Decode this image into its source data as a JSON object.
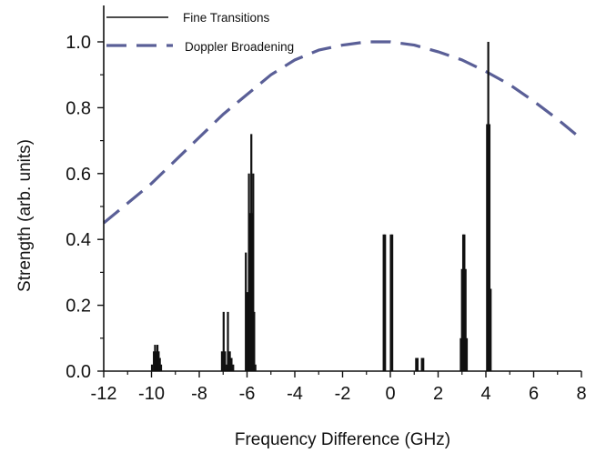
{
  "chart_data": {
    "type": "line",
    "xlabel": "Frequency Difference (GHz)",
    "ylabel": "Strength (arb. units)",
    "xlim": [
      -12,
      8
    ],
    "ylim": [
      0,
      1.0
    ],
    "xticks": [
      -12,
      -10,
      -8,
      -6,
      -4,
      -2,
      0,
      2,
      4,
      6,
      8
    ],
    "xtick_labels": [
      "-12",
      "-10",
      "-8",
      "-6",
      "-4",
      "-2",
      "0",
      "2",
      "4",
      "6",
      "8"
    ],
    "yticks": [
      0,
      0.2,
      0.4,
      0.6,
      0.8,
      1.0
    ],
    "ytick_labels": [
      "0.0",
      "0.2",
      "0.4",
      "0.6",
      "0.8",
      "1.0"
    ],
    "grid": false,
    "legend_position": "top-left",
    "series": [
      {
        "name": "Fine Transitions",
        "style": "stick",
        "color": "#111111",
        "x": [
          -9.98,
          -9.9,
          -9.85,
          -9.8,
          -9.75,
          -9.7,
          -9.65,
          -9.6,
          -7.05,
          -6.98,
          -6.92,
          -6.85,
          -6.8,
          -6.72,
          -6.65,
          -6.58,
          -6.05,
          -5.98,
          -5.92,
          -5.87,
          -5.82,
          -5.78,
          -5.74,
          -5.7,
          -5.65,
          -0.28,
          -0.22,
          0.02,
          0.08,
          1.08,
          1.14,
          1.32,
          1.38,
          2.95,
          3.0,
          3.05,
          3.1,
          3.15,
          3.2,
          4.05,
          4.1,
          4.15,
          4.2
        ],
        "y": [
          0.02,
          0.06,
          0.08,
          0.06,
          0.08,
          0.06,
          0.04,
          0.02,
          0.06,
          0.18,
          0.06,
          0.02,
          0.18,
          0.06,
          0.04,
          0.02,
          0.36,
          0.24,
          0.6,
          0.48,
          0.72,
          0.48,
          0.6,
          0.18,
          0.02,
          0.415,
          0.415,
          0.415,
          0.415,
          0.04,
          0.04,
          0.04,
          0.04,
          0.1,
          0.31,
          0.415,
          0.415,
          0.31,
          0.1,
          0.75,
          1.0,
          0.75,
          0.25
        ]
      },
      {
        "name": "Doppler Broadening",
        "style": "dashed",
        "color": "#5a5f97",
        "x": [
          -12,
          -11,
          -10,
          -9,
          -8,
          -7,
          -6,
          -5,
          -4,
          -3,
          -2,
          -1,
          0,
          1,
          2,
          3,
          4,
          5,
          6,
          7,
          8
        ],
        "y": [
          0.45,
          0.51,
          0.57,
          0.64,
          0.71,
          0.78,
          0.84,
          0.9,
          0.945,
          0.975,
          0.99,
          1.0,
          1.0,
          0.99,
          0.97,
          0.945,
          0.91,
          0.87,
          0.82,
          0.765,
          0.705
        ]
      }
    ]
  }
}
